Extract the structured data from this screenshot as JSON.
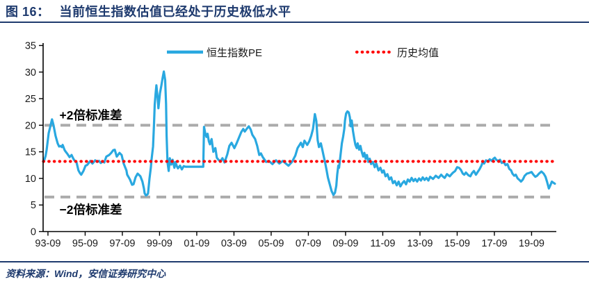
{
  "header": {
    "figure_label": "图 16：",
    "title": "当前恒生指数估值已经处于历史极低水平"
  },
  "footer": {
    "source": "资料来源：Wind，安信证券研究中心"
  },
  "colors": {
    "navy_accent": "#1e3a6e",
    "series_blue": "#29a8e0",
    "mean_red": "#ff0000",
    "band_gray": "#ababab",
    "axis_black": "#000000",
    "tick_text": "#1a1a1a"
  },
  "chart_data": {
    "type": "line",
    "title": "当前恒生指数估值已经处于历史极低水平",
    "xlabel": "",
    "ylabel": "",
    "ylim": [
      0,
      35
    ],
    "yticks": [
      0,
      5,
      10,
      15,
      20,
      25,
      30,
      35
    ],
    "xlim": [
      1993.49,
      2021.08
    ],
    "x_tick_years": [
      1993.75,
      1995.75,
      1997.75,
      1999.75,
      2001.75,
      2003.75,
      2005.75,
      2007.75,
      2009.75,
      2011.75,
      2013.75,
      2015.75,
      2017.75,
      2019.75
    ],
    "x_tick_labels": [
      "93-09",
      "95-09",
      "97-09",
      "99-09",
      "01-09",
      "03-09",
      "05-09",
      "07-09",
      "09-09",
      "11-09",
      "13-09",
      "15-09",
      "17-09",
      "19-09"
    ],
    "grid": false,
    "legend_position": "top",
    "legend": [
      {
        "label": "恒生指数PE",
        "color": "#29a8e0",
        "style": "solid"
      },
      {
        "label": "历史均值",
        "color": "#ff0000",
        "style": "dotted"
      }
    ],
    "mean_value": 13.2,
    "upper_band_value": 20.0,
    "lower_band_value": 6.5,
    "annotations": [
      {
        "text": "+2倍标准差",
        "x": 1996.05,
        "y": 21.9
      },
      {
        "text": "−2倍标准差",
        "x": 1996.05,
        "y": 4.1
      }
    ],
    "series": [
      {
        "name": "恒生指数PE",
        "points": [
          [
            1993.53,
            13.2
          ],
          [
            1993.62,
            14.2
          ],
          [
            1993.68,
            15.4
          ],
          [
            1993.79,
            18.5
          ],
          [
            1993.88,
            19.8
          ],
          [
            1993.97,
            21.1
          ],
          [
            1994.05,
            20.0
          ],
          [
            1994.09,
            19.3
          ],
          [
            1994.16,
            18.0
          ],
          [
            1994.27,
            16.6
          ],
          [
            1994.35,
            16.0
          ],
          [
            1994.42,
            16.1
          ],
          [
            1994.5,
            15.9
          ],
          [
            1994.54,
            16.3
          ],
          [
            1994.65,
            15.3
          ],
          [
            1994.73,
            14.9
          ],
          [
            1994.8,
            14.6
          ],
          [
            1994.91,
            14.0
          ],
          [
            1995.02,
            14.4
          ],
          [
            1995.1,
            13.8
          ],
          [
            1995.17,
            13.4
          ],
          [
            1995.28,
            13.1
          ],
          [
            1995.39,
            11.5
          ],
          [
            1995.47,
            11.0
          ],
          [
            1995.54,
            10.7
          ],
          [
            1995.66,
            11.4
          ],
          [
            1995.77,
            12.4
          ],
          [
            1995.85,
            12.5
          ],
          [
            1995.92,
            12.8
          ],
          [
            1996.03,
            13.3
          ],
          [
            1996.14,
            12.8
          ],
          [
            1996.22,
            13.1
          ],
          [
            1996.29,
            13.4
          ],
          [
            1996.4,
            13.1
          ],
          [
            1996.5,
            13.3
          ],
          [
            1996.59,
            12.9
          ],
          [
            1996.7,
            13.2
          ],
          [
            1996.78,
            13.0
          ],
          [
            1996.89,
            14.1
          ],
          [
            1997.04,
            14.4
          ],
          [
            1997.15,
            14.8
          ],
          [
            1997.26,
            15.3
          ],
          [
            1997.34,
            15.4
          ],
          [
            1997.45,
            14.1
          ],
          [
            1997.6,
            14.8
          ],
          [
            1997.71,
            14.4
          ],
          [
            1997.82,
            12.8
          ],
          [
            1997.97,
            11.5
          ],
          [
            1998.01,
            10.7
          ],
          [
            1998.16,
            9.8
          ],
          [
            1998.27,
            8.8
          ],
          [
            1998.35,
            8.9
          ],
          [
            1998.46,
            10.2
          ],
          [
            1998.57,
            10.9
          ],
          [
            1998.72,
            10.4
          ],
          [
            1998.83,
            9.4
          ],
          [
            1998.91,
            8.1
          ],
          [
            1998.95,
            7.2
          ],
          [
            1999.02,
            6.8
          ],
          [
            1999.1,
            7.0
          ],
          [
            1999.13,
            7.2
          ],
          [
            1999.21,
            10.0
          ],
          [
            1999.28,
            12.0
          ],
          [
            1999.32,
            13.5
          ],
          [
            1999.4,
            16.0
          ],
          [
            1999.45,
            20.0
          ],
          [
            1999.49,
            23.9
          ],
          [
            1999.54,
            26.0
          ],
          [
            1999.58,
            27.5
          ],
          [
            1999.65,
            25.0
          ],
          [
            1999.69,
            23.2
          ],
          [
            1999.77,
            26.0
          ],
          [
            1999.85,
            27.5
          ],
          [
            1999.92,
            29.0
          ],
          [
            1999.98,
            30.1
          ],
          [
            2000.05,
            28.5
          ],
          [
            2000.1,
            24.0
          ],
          [
            2000.13,
            18.0
          ],
          [
            2000.18,
            13.0
          ],
          [
            2000.24,
            11.4
          ],
          [
            2000.3,
            13.8
          ],
          [
            2000.38,
            12.6
          ],
          [
            2000.45,
            13.5
          ],
          [
            2000.55,
            12.0
          ],
          [
            2000.6,
            13.1
          ],
          [
            2000.68,
            12.3
          ],
          [
            2000.74,
            11.9
          ],
          [
            2000.85,
            12.4
          ],
          [
            2000.95,
            11.7
          ],
          [
            2001.05,
            12.3
          ],
          [
            2001.15,
            12.2
          ],
          [
            2002.1,
            12.2
          ],
          [
            2002.14,
            19.7
          ],
          [
            2002.2,
            18.6
          ],
          [
            2002.27,
            17.8
          ],
          [
            2002.33,
            18.4
          ],
          [
            2002.4,
            17.0
          ],
          [
            2002.46,
            16.4
          ],
          [
            2002.55,
            17.4
          ],
          [
            2002.64,
            15.0
          ],
          [
            2002.75,
            15.7
          ],
          [
            2002.83,
            13.9
          ],
          [
            2002.92,
            13.5
          ],
          [
            2003.02,
            13.2
          ],
          [
            2003.13,
            13.8
          ],
          [
            2003.24,
            13.0
          ],
          [
            2003.39,
            14.5
          ],
          [
            2003.5,
            16.1
          ],
          [
            2003.62,
            16.7
          ],
          [
            2003.77,
            15.7
          ],
          [
            2003.88,
            16.5
          ],
          [
            2004.0,
            17.5
          ],
          [
            2004.14,
            18.7
          ],
          [
            2004.25,
            19.3
          ],
          [
            2004.33,
            18.8
          ],
          [
            2004.45,
            19.4
          ],
          [
            2004.55,
            19.8
          ],
          [
            2004.65,
            19.2
          ],
          [
            2004.74,
            18.2
          ],
          [
            2004.89,
            17.4
          ],
          [
            2005.0,
            16.1
          ],
          [
            2005.11,
            14.4
          ],
          [
            2005.2,
            14.7
          ],
          [
            2005.3,
            14.0
          ],
          [
            2005.48,
            13.1
          ],
          [
            2005.63,
            13.3
          ],
          [
            2005.82,
            12.7
          ],
          [
            2006.01,
            13.4
          ],
          [
            2006.19,
            12.8
          ],
          [
            2006.38,
            13.3
          ],
          [
            2006.57,
            12.7
          ],
          [
            2006.68,
            12.4
          ],
          [
            2006.87,
            13.1
          ],
          [
            2007.05,
            14.3
          ],
          [
            2007.17,
            15.7
          ],
          [
            2007.35,
            16.7
          ],
          [
            2007.45,
            15.9
          ],
          [
            2007.54,
            17.1
          ],
          [
            2007.69,
            16.3
          ],
          [
            2007.8,
            17.0
          ],
          [
            2007.9,
            18.0
          ],
          [
            2008.0,
            19.3
          ],
          [
            2008.1,
            22.1
          ],
          [
            2008.18,
            20.8
          ],
          [
            2008.25,
            17.2
          ],
          [
            2008.32,
            15.9
          ],
          [
            2008.42,
            16.6
          ],
          [
            2008.5,
            15.4
          ],
          [
            2008.58,
            14.1
          ],
          [
            2008.66,
            12.8
          ],
          [
            2008.73,
            11.5
          ],
          [
            2008.8,
            10.2
          ],
          [
            2008.9,
            8.9
          ],
          [
            2009.0,
            7.6
          ],
          [
            2009.1,
            6.9
          ],
          [
            2009.18,
            7.3
          ],
          [
            2009.25,
            8.6
          ],
          [
            2009.3,
            10.7
          ],
          [
            2009.36,
            12.4
          ],
          [
            2009.4,
            12.0
          ],
          [
            2009.48,
            14.4
          ],
          [
            2009.55,
            16.6
          ],
          [
            2009.62,
            17.9
          ],
          [
            2009.68,
            19.3
          ],
          [
            2009.72,
            20.9
          ],
          [
            2009.78,
            22.2
          ],
          [
            2009.85,
            22.6
          ],
          [
            2009.92,
            22.4
          ],
          [
            2009.98,
            21.5
          ],
          [
            2010.03,
            19.8
          ],
          [
            2010.08,
            20.9
          ],
          [
            2010.15,
            18.9
          ],
          [
            2010.22,
            17.4
          ],
          [
            2010.28,
            16.3
          ],
          [
            2010.35,
            15.7
          ],
          [
            2010.4,
            16.6
          ],
          [
            2010.48,
            15.4
          ],
          [
            2010.55,
            16.1
          ],
          [
            2010.62,
            15.0
          ],
          [
            2010.7,
            14.1
          ],
          [
            2010.76,
            14.8
          ],
          [
            2010.83,
            13.7
          ],
          [
            2010.9,
            14.4
          ],
          [
            2010.97,
            13.1
          ],
          [
            2011.05,
            13.7
          ],
          [
            2011.12,
            12.7
          ],
          [
            2011.22,
            13.1
          ],
          [
            2011.32,
            12.1
          ],
          [
            2011.4,
            12.8
          ],
          [
            2011.52,
            11.5
          ],
          [
            2011.62,
            12.0
          ],
          [
            2011.72,
            11.1
          ],
          [
            2011.8,
            11.5
          ],
          [
            2011.9,
            10.4
          ],
          [
            2012.0,
            10.8
          ],
          [
            2012.1,
            9.8
          ],
          [
            2012.2,
            10.2
          ],
          [
            2012.3,
            9.1
          ],
          [
            2012.4,
            9.5
          ],
          [
            2012.5,
            8.7
          ],
          [
            2012.6,
            9.4
          ],
          [
            2012.7,
            8.5
          ],
          [
            2012.8,
            9.1
          ],
          [
            2012.9,
            9.5
          ],
          [
            2013.0,
            8.9
          ],
          [
            2013.1,
            9.8
          ],
          [
            2013.2,
            9.4
          ],
          [
            2013.3,
            10.1
          ],
          [
            2013.4,
            9.5
          ],
          [
            2013.5,
            9.9
          ],
          [
            2013.6,
            9.4
          ],
          [
            2013.7,
            10.0
          ],
          [
            2013.8,
            9.6
          ],
          [
            2013.9,
            10.2
          ],
          [
            2014.0,
            9.7
          ],
          [
            2014.1,
            10.1
          ],
          [
            2014.2,
            9.6
          ],
          [
            2014.3,
            10.3
          ],
          [
            2014.45,
            9.9
          ],
          [
            2014.6,
            10.5
          ],
          [
            2014.75,
            10.1
          ],
          [
            2014.89,
            10.7
          ],
          [
            2015.0,
            10.3
          ],
          [
            2015.08,
            10.1
          ],
          [
            2015.2,
            10.8
          ],
          [
            2015.35,
            10.4
          ],
          [
            2015.5,
            11.0
          ],
          [
            2015.64,
            11.4
          ],
          [
            2015.75,
            12.1
          ],
          [
            2015.85,
            12.0
          ],
          [
            2015.95,
            11.6
          ],
          [
            2016.05,
            10.9
          ],
          [
            2016.13,
            10.7
          ],
          [
            2016.22,
            11.1
          ],
          [
            2016.35,
            10.6
          ],
          [
            2016.46,
            10.4
          ],
          [
            2016.55,
            11.0
          ],
          [
            2016.65,
            11.4
          ],
          [
            2016.76,
            10.7
          ],
          [
            2016.85,
            11.2
          ],
          [
            2016.95,
            11.7
          ],
          [
            2017.05,
            12.4
          ],
          [
            2017.13,
            13.1
          ],
          [
            2017.2,
            12.8
          ],
          [
            2017.3,
            13.4
          ],
          [
            2017.4,
            13.2
          ],
          [
            2017.5,
            13.6
          ],
          [
            2017.6,
            13.3
          ],
          [
            2017.7,
            13.7
          ],
          [
            2017.77,
            13.9
          ],
          [
            2017.85,
            13.5
          ],
          [
            2017.95,
            13.3
          ],
          [
            2018.05,
            13.5
          ],
          [
            2018.15,
            12.9
          ],
          [
            2018.25,
            13.1
          ],
          [
            2018.35,
            12.5
          ],
          [
            2018.45,
            12.7
          ],
          [
            2018.55,
            11.8
          ],
          [
            2018.65,
            11.5
          ],
          [
            2018.72,
            10.9
          ],
          [
            2018.82,
            10.5
          ],
          [
            2018.9,
            10.7
          ],
          [
            2019.0,
            10.0
          ],
          [
            2019.1,
            9.7
          ],
          [
            2019.18,
            9.4
          ],
          [
            2019.28,
            9.8
          ],
          [
            2019.38,
            10.5
          ],
          [
            2019.5,
            10.9
          ],
          [
            2019.6,
            11.0
          ],
          [
            2019.75,
            11.2
          ],
          [
            2019.85,
            10.7
          ],
          [
            2019.95,
            10.3
          ],
          [
            2020.05,
            10.5
          ],
          [
            2020.15,
            10.9
          ],
          [
            2020.28,
            11.3
          ],
          [
            2020.4,
            10.9
          ],
          [
            2020.5,
            10.3
          ],
          [
            2020.58,
            9.4
          ],
          [
            2020.68,
            8.1
          ],
          [
            2020.76,
            8.7
          ],
          [
            2020.84,
            9.4
          ],
          [
            2020.92,
            9.2
          ],
          [
            2021.0,
            9.0
          ]
        ]
      }
    ]
  }
}
